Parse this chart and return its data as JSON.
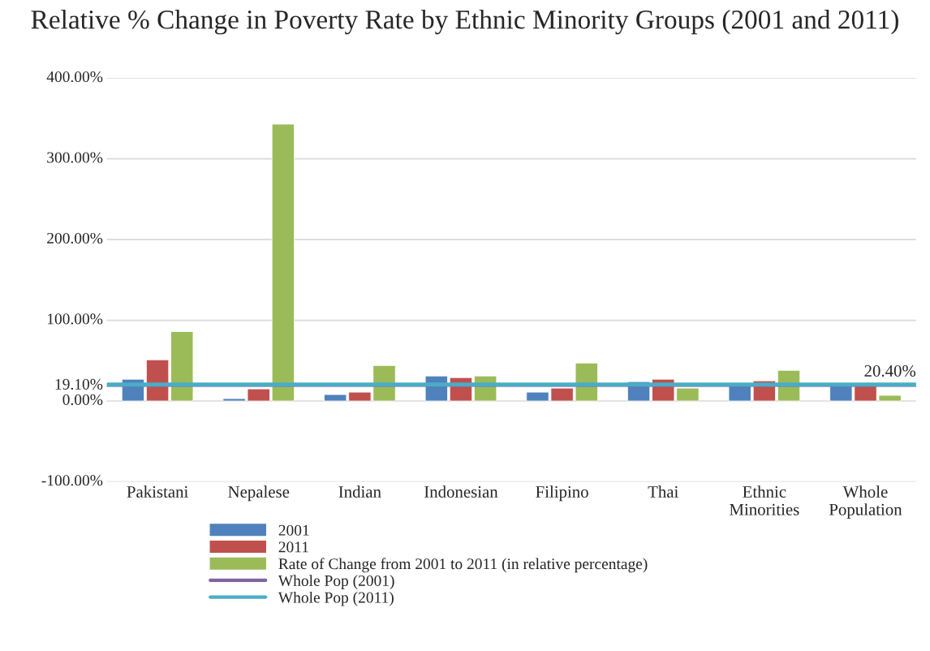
{
  "chart_data": {
    "type": "bar",
    "title": "Relative % Change in Poverty Rate by Ethnic Minority Groups (2001 and 2011)",
    "categories": [
      "Pakistani",
      "Nepalese",
      "Indian",
      "Indonesian",
      "Filipino",
      "Thai",
      "Ethnic Minorities",
      "Whole Population"
    ],
    "series": [
      {
        "name": "2001",
        "color": "#4f81bd",
        "values": [
          27,
          3,
          8,
          31,
          11,
          24,
          21,
          19
        ]
      },
      {
        "name": "2011",
        "color": "#c0504d",
        "values": [
          51,
          15,
          11,
          29,
          16,
          27,
          25,
          20
        ]
      },
      {
        "name": "Rate of Change from 2001 to 2011 (in relative percentage)",
        "color": "#9bbb59",
        "values": [
          86,
          343,
          44,
          31,
          47,
          16,
          38,
          7
        ]
      }
    ],
    "ref_lines": [
      {
        "axis": "y",
        "value": 19.1,
        "label": "Whole Pop (2001)",
        "color": "#8064a2"
      },
      {
        "axis": "y",
        "value": 20.4,
        "label": "Whole Pop (2011)",
        "color": "#4bacc6"
      }
    ],
    "annotations": [
      {
        "text": "20.40%",
        "y": 20.4
      }
    ],
    "ylim": [
      -100,
      400
    ],
    "yticks": [
      {
        "value": -100,
        "label": "-100.00%"
      },
      {
        "value": 0,
        "label": "0.00%"
      },
      {
        "value": 19.1,
        "label": "19.10%"
      },
      {
        "value": 100,
        "label": "100.00%"
      },
      {
        "value": 200,
        "label": "200.00%"
      },
      {
        "value": 300,
        "label": "300.00%"
      },
      {
        "value": 400,
        "label": "400.00%"
      }
    ],
    "grid": "y",
    "legend": "bottom"
  }
}
